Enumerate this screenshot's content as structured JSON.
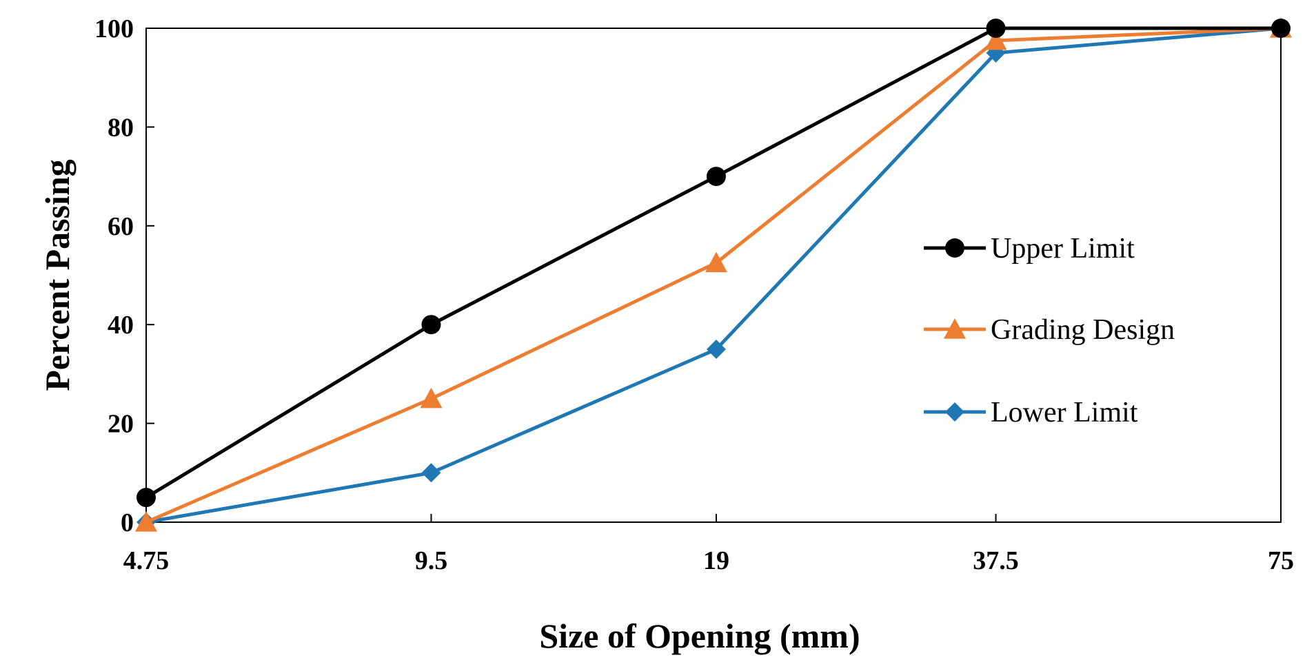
{
  "chart_data": {
    "type": "line",
    "title": "",
    "xlabel": "Size of Opening (mm)",
    "ylabel": "Percent Passing",
    "x_scale": "log",
    "categories": [
      "4.75",
      "9.5",
      "19",
      "37.5",
      "75"
    ],
    "x": [
      4.75,
      9.5,
      19,
      37.5,
      75
    ],
    "ylim": [
      0,
      100
    ],
    "yticks": [
      "0",
      "20",
      "40",
      "60",
      "80",
      "100"
    ],
    "grid": false,
    "legend_position": "right",
    "series": [
      {
        "name": "Upper Limit",
        "color": "#000000",
        "marker": "circle",
        "values": [
          5,
          40,
          70,
          100,
          100
        ]
      },
      {
        "name": "Grading Design",
        "color": "#ed7d31",
        "marker": "triangle",
        "values": [
          0,
          25,
          52.5,
          97.5,
          100
        ]
      },
      {
        "name": "Lower Limit",
        "color": "#1f77b4",
        "marker": "diamond",
        "values": [
          0,
          10,
          35,
          95,
          100
        ]
      }
    ]
  }
}
